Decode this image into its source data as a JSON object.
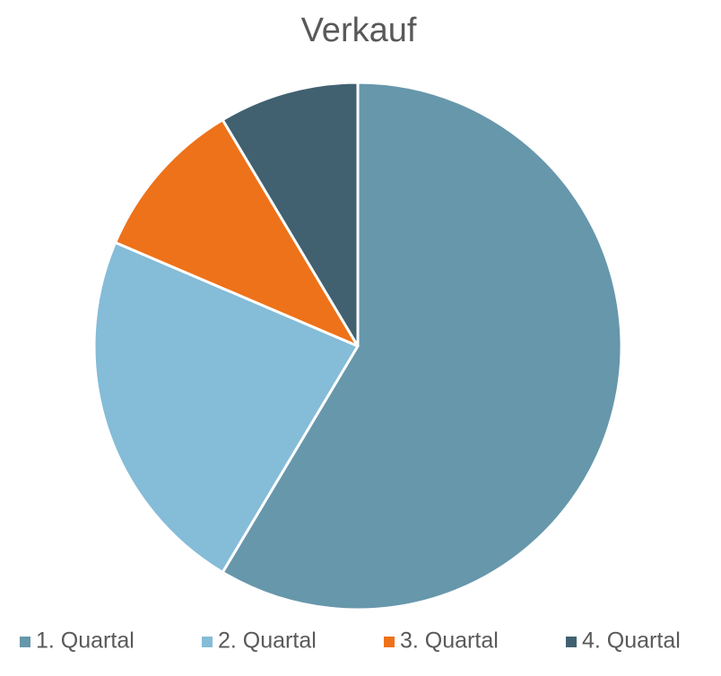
{
  "chart_data": {
    "type": "pie",
    "title": "Verkauf",
    "categories": [
      "1. Quartal",
      "2. Quartal",
      "3. Quartal",
      "4. Quartal"
    ],
    "values": [
      8.2,
      3.2,
      1.4,
      1.2
    ],
    "colors": [
      "#6797ab",
      "#85bcd8",
      "#ee7219",
      "#416170"
    ],
    "legend": "bottom"
  }
}
